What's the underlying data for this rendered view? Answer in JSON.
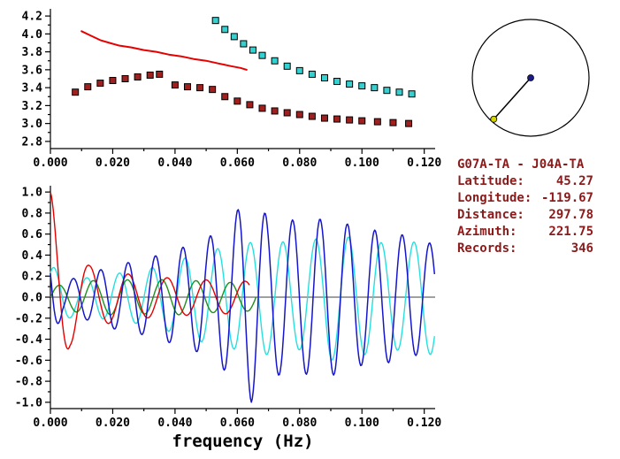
{
  "colors": {
    "background": "#ffffff",
    "axis_and_text": "#000000",
    "info_text": "#8b1a1a"
  },
  "station_info": {
    "title": "G07A-TA - J04A-TA",
    "rows": [
      {
        "label": "Latitude:",
        "value": "45.27"
      },
      {
        "label": "Longitude:",
        "value": "-119.67"
      },
      {
        "label": "Distance:",
        "value": "297.78"
      },
      {
        "label": "Azimuth:",
        "value": "221.75"
      },
      {
        "label": "Records:",
        "value": "346"
      }
    ]
  },
  "azimuth_dial": {
    "azimuth_deg": 221.75,
    "circle_color": "#000000",
    "line_color": "#000000",
    "center_dot_color": "#1a1a8c",
    "end_dot_color": "#d4d400"
  },
  "chart_data": [
    {
      "name": "dispersion-curves-panel",
      "type": "scatter",
      "title": "",
      "xlabel": "",
      "ylabel": "",
      "xlim": [
        0,
        0.1235
      ],
      "ylim": [
        2.72,
        4.28
      ],
      "grid": false,
      "ticks": {
        "x_major": [
          0,
          0.02,
          0.04,
          0.06,
          0.08,
          0.1,
          0.12
        ],
        "x_labels": [
          "0.000",
          "0.020",
          "0.040",
          "0.060",
          "0.080",
          "0.100",
          "0.120"
        ],
        "x_minor_step": 0.01,
        "y_major": [
          2.8,
          3.0,
          3.2,
          3.4,
          3.6,
          3.8,
          4.0,
          4.2
        ],
        "y_labels": [
          "2.8",
          "3.0",
          "3.2",
          "3.4",
          "3.6",
          "3.8",
          "4.0",
          "4.2"
        ],
        "y_minor_step": 0.1
      },
      "series": [
        {
          "name": "dark-red-square-dispersion",
          "type": "scatter",
          "marker": "square",
          "color": "#a02020",
          "points": [
            [
              0.008,
              3.35
            ],
            [
              0.012,
              3.41
            ],
            [
              0.016,
              3.45
            ],
            [
              0.02,
              3.48
            ],
            [
              0.024,
              3.5
            ],
            [
              0.028,
              3.52
            ],
            [
              0.032,
              3.54
            ],
            [
              0.035,
              3.55
            ],
            [
              0.04,
              3.43
            ],
            [
              0.044,
              3.41
            ],
            [
              0.048,
              3.4
            ],
            [
              0.052,
              3.38
            ],
            [
              0.056,
              3.3
            ],
            [
              0.06,
              3.25
            ],
            [
              0.064,
              3.21
            ],
            [
              0.068,
              3.17
            ],
            [
              0.072,
              3.14
            ],
            [
              0.076,
              3.12
            ],
            [
              0.08,
              3.1
            ],
            [
              0.084,
              3.08
            ],
            [
              0.088,
              3.06
            ],
            [
              0.092,
              3.05
            ],
            [
              0.096,
              3.04
            ],
            [
              0.1,
              3.03
            ],
            [
              0.105,
              3.02
            ],
            [
              0.11,
              3.01
            ],
            [
              0.115,
              3.0
            ]
          ]
        },
        {
          "name": "cyan-square-dispersion",
          "type": "scatter",
          "marker": "square",
          "color": "#35d0d0",
          "points": [
            [
              0.053,
              4.15
            ],
            [
              0.056,
              4.05
            ],
            [
              0.059,
              3.97
            ],
            [
              0.062,
              3.89
            ],
            [
              0.065,
              3.82
            ],
            [
              0.068,
              3.76
            ],
            [
              0.072,
              3.7
            ],
            [
              0.076,
              3.64
            ],
            [
              0.08,
              3.59
            ],
            [
              0.084,
              3.55
            ],
            [
              0.088,
              3.51
            ],
            [
              0.092,
              3.47
            ],
            [
              0.096,
              3.44
            ],
            [
              0.1,
              3.42
            ],
            [
              0.104,
              3.4
            ],
            [
              0.108,
              3.37
            ],
            [
              0.112,
              3.35
            ],
            [
              0.116,
              3.33
            ]
          ]
        },
        {
          "name": "red-dispersion-line",
          "type": "line",
          "color": "#e60000",
          "width": 2,
          "points": [
            [
              0.01,
              4.03
            ],
            [
              0.013,
              3.98
            ],
            [
              0.016,
              3.93
            ],
            [
              0.019,
              3.9
            ],
            [
              0.022,
              3.87
            ],
            [
              0.026,
              3.85
            ],
            [
              0.03,
              3.82
            ],
            [
              0.034,
              3.8
            ],
            [
              0.038,
              3.77
            ],
            [
              0.042,
              3.75
            ],
            [
              0.046,
              3.72
            ],
            [
              0.05,
              3.7
            ],
            [
              0.054,
              3.67
            ],
            [
              0.058,
              3.64
            ],
            [
              0.061,
              3.62
            ],
            [
              0.063,
              3.6
            ]
          ]
        }
      ]
    },
    {
      "name": "cross-spectrum-panel",
      "type": "line",
      "title": "",
      "xlabel": "frequency (Hz)",
      "ylabel": "",
      "xlim": [
        0,
        0.1235
      ],
      "ylim": [
        -1.06,
        1.06
      ],
      "zero_line": true,
      "grid": false,
      "ticks": {
        "x_major": [
          0,
          0.02,
          0.04,
          0.06,
          0.08,
          0.1,
          0.12
        ],
        "x_labels": [
          "0.000",
          "0.020",
          "0.040",
          "0.060",
          "0.080",
          "0.100",
          "0.120"
        ],
        "x_minor_step": 0.01,
        "y_major": [
          -1.0,
          -0.8,
          -0.6,
          -0.4,
          -0.2,
          0.0,
          0.2,
          0.4,
          0.6,
          0.8,
          1.0
        ],
        "y_labels": [
          "-1.0",
          "-0.8",
          "-0.6",
          "-0.4",
          "-0.2",
          "0.0",
          "0.2",
          "0.4",
          "0.6",
          "0.8",
          "1.0"
        ],
        "y_minor_step": 0.1
      },
      "traces": [
        {
          "name": "cyan-trace",
          "color": "#25e0e0",
          "width": 1.4,
          "period": 0.0105,
          "phase_deg": -40,
          "x_range": [
            0,
            0.1235
          ],
          "envelope": [
            [
              0,
              0.3
            ],
            [
              0.008,
              0.17
            ],
            [
              0.02,
              0.22
            ],
            [
              0.03,
              0.26
            ],
            [
              0.04,
              0.34
            ],
            [
              0.05,
              0.44
            ],
            [
              0.06,
              0.5
            ],
            [
              0.07,
              0.55
            ],
            [
              0.08,
              0.5
            ],
            [
              0.09,
              0.6
            ],
            [
              0.1,
              0.55
            ],
            [
              0.11,
              0.5
            ],
            [
              0.1235,
              0.55
            ]
          ]
        },
        {
          "name": "green-trace",
          "color": "#1f8f1f",
          "width": 1.4,
          "period": 0.011,
          "phase_deg": -90,
          "x_range": [
            0,
            0.066
          ],
          "envelope": [
            [
              0,
              0.1
            ],
            [
              0.01,
              0.15
            ],
            [
              0.02,
              0.17
            ],
            [
              0.03,
              0.16
            ],
            [
              0.04,
              0.17
            ],
            [
              0.05,
              0.15
            ],
            [
              0.066,
              0.13
            ]
          ]
        },
        {
          "name": "red-trace",
          "color": "#e60000",
          "width": 1.4,
          "period": 0.0125,
          "phase_deg": 0,
          "x_range": [
            0,
            0.064
          ],
          "envelope": [
            [
              0,
              1.0
            ],
            [
              0.0063,
              0.46
            ],
            [
              0.0125,
              0.3
            ],
            [
              0.02,
              0.24
            ],
            [
              0.03,
              0.2
            ],
            [
              0.045,
              0.17
            ],
            [
              0.064,
              0.15
            ]
          ]
        },
        {
          "name": "blue-trace",
          "color": "#1515cc",
          "width": 1.5,
          "period": 0.0088,
          "phase_deg": 60,
          "x_range": [
            0,
            0.1235
          ],
          "envelope": [
            [
              0,
              0.45
            ],
            [
              0.004,
              0.15
            ],
            [
              0.01,
              0.2
            ],
            [
              0.02,
              0.3
            ],
            [
              0.03,
              0.36
            ],
            [
              0.04,
              0.45
            ],
            [
              0.05,
              0.55
            ],
            [
              0.058,
              0.75
            ],
            [
              0.0645,
              1.0
            ],
            [
              0.07,
              0.75
            ],
            [
              0.08,
              0.73
            ],
            [
              0.09,
              0.75
            ],
            [
              0.1,
              0.65
            ],
            [
              0.11,
              0.62
            ],
            [
              0.1235,
              0.5
            ]
          ]
        }
      ]
    }
  ]
}
